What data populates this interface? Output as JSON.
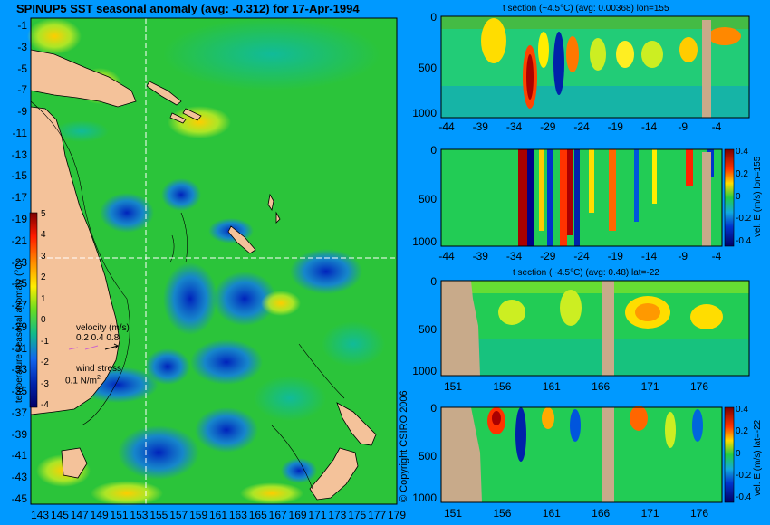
{
  "title": "SPINUP5 SST seasonal anomaly (avg: -0.312) for 17-Apr-1994",
  "map": {
    "lat_ticks": [
      "-1",
      "-3",
      "-5",
      "-7",
      "-9",
      "-11",
      "-13",
      "-15",
      "-17",
      "-19",
      "-21",
      "-23",
      "-25",
      "-27",
      "-29",
      "-31",
      "-33",
      "-35",
      "-37",
      "-39",
      "-41",
      "-43",
      "-45"
    ],
    "lon_ticks": [
      "143",
      "145",
      "147",
      "149",
      "151",
      "153",
      "155",
      "157",
      "159",
      "161",
      "163",
      "165",
      "167",
      "169",
      "171",
      "173",
      "175",
      "177",
      "179"
    ],
    "colorbar_ticks": [
      "5",
      "4",
      "3",
      "2",
      "1",
      "0",
      "-1",
      "-2",
      "-3",
      "-4"
    ],
    "colorbar_label": "temperature seasonal anomaly (°C)",
    "velocity_label": "velocity (m/s)",
    "velocity_scale": "0.2 0.4 0.8",
    "wind_label": "wind stress",
    "wind_scale": "0.1 N/m",
    "wind_scale_sup": "2",
    "copyright": "© Copyright CSIRO 2006"
  },
  "panels": [
    {
      "title": "t section (~4.5°C) (avg: 0.00368) lon=155",
      "x_ticks": [
        "-44",
        "-39",
        "-34",
        "-29",
        "-24",
        "-19",
        "-14",
        "-9",
        "-4"
      ],
      "y_ticks": [
        "0",
        "500",
        "1000"
      ]
    },
    {
      "title": "",
      "x_ticks": [
        "-44",
        "-39",
        "-34",
        "-29",
        "-24",
        "-19",
        "-14",
        "-9",
        "-4"
      ],
      "y_ticks": [
        "0",
        "500",
        "1000"
      ],
      "colorbar_ticks": [
        "0.4",
        "0.2",
        "0",
        "-0.2",
        "-0.4"
      ],
      "colorbar_label": "vel. E (m/s) lon=155"
    },
    {
      "title": "t section (~4.5°C) (avg: 0.48) lat=-22",
      "x_ticks": [
        "151",
        "156",
        "161",
        "166",
        "171",
        "176"
      ],
      "y_ticks": [
        "0",
        "500",
        "1000"
      ]
    },
    {
      "title": "",
      "x_ticks": [
        "151",
        "156",
        "161",
        "166",
        "171",
        "176"
      ],
      "y_ticks": [
        "0",
        "500",
        "1000"
      ],
      "colorbar_ticks": [
        "0.4",
        "0.2",
        "0",
        "-0.2",
        "-0.4"
      ],
      "colorbar_label": "vel. E (m/s) lat=-22"
    }
  ],
  "colors": {
    "background": "#0099ff",
    "land": "#f4c29a",
    "section_land": "#c8aa8a",
    "ocean_base": "#22cc44"
  }
}
